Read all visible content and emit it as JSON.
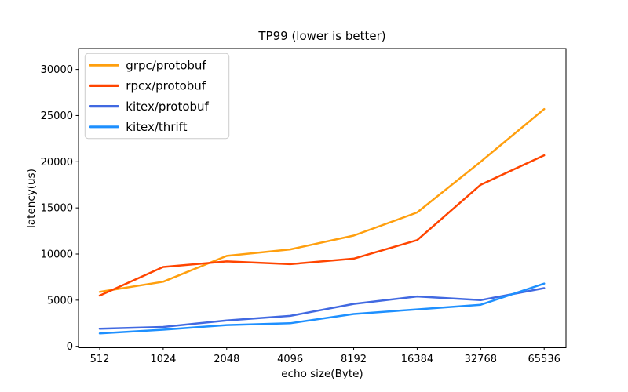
{
  "figure": {
    "background": "#ffffff"
  },
  "chart_data": {
    "type": "line",
    "title": "TP99 (lower is better)",
    "xlabel": "echo size(Byte)",
    "ylabel": "latency(us)",
    "categories": [
      "512",
      "1024",
      "2048",
      "4096",
      "8192",
      "16384",
      "32768",
      "65536"
    ],
    "y_ticks": [
      0,
      5000,
      10000,
      15000,
      20000,
      25000,
      30000
    ],
    "ylim": [
      -150,
      32270
    ],
    "grid": false,
    "legend_position": "upper-left",
    "axis_color": "#000000",
    "legend_border_color": "#cccccc",
    "series": [
      {
        "name": "grpc/protobuf",
        "color": "#FF9F0E",
        "values": [
          5900,
          7000,
          9800,
          10500,
          12000,
          14500,
          20000,
          25700
        ]
      },
      {
        "name": "rpcx/protobuf",
        "color": "#FF4500",
        "values": [
          5500,
          8600,
          9200,
          8900,
          9500,
          11500,
          17500,
          20700
        ]
      },
      {
        "name": "kitex/protobuf",
        "color": "#4169E1",
        "values": [
          1900,
          2100,
          2800,
          3300,
          4600,
          5400,
          5000,
          6300
        ]
      },
      {
        "name": "kitex/thrift",
        "color": "#1E90FF",
        "values": [
          1400,
          1800,
          2300,
          2500,
          3500,
          4000,
          4500,
          6800
        ]
      }
    ]
  }
}
